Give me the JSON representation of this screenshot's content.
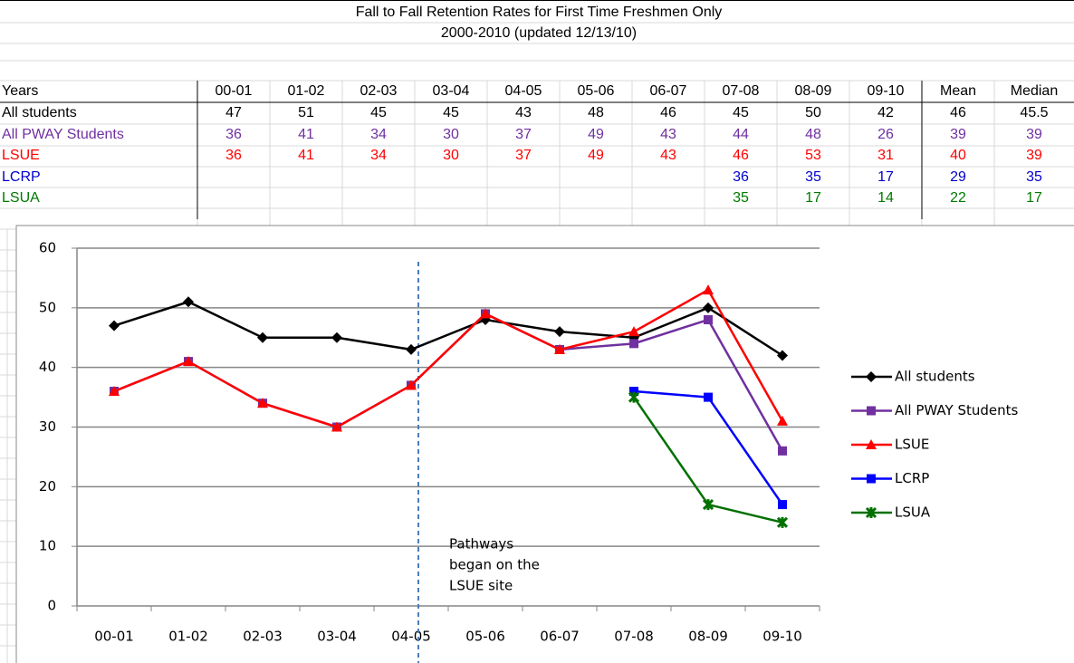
{
  "header": {
    "title": "Fall to Fall Retention Rates for First Time Freshmen Only",
    "subtitle": "2000-2010 (updated 12/13/10)"
  },
  "table": {
    "header": [
      "Years",
      "00-01",
      "01-02",
      "02-03",
      "03-04",
      "04-05",
      "05-06",
      "06-07",
      "07-08",
      "08-09",
      "09-10",
      "Mean",
      "Median"
    ],
    "rows": [
      {
        "label": "All students",
        "color": "#000000",
        "cells": [
          47,
          51,
          45,
          45,
          43,
          48,
          46,
          45,
          50,
          42,
          46,
          45.5
        ]
      },
      {
        "label": "All PWAY Students",
        "color": "#7030a0",
        "cells": [
          36,
          41,
          34,
          30,
          37,
          49,
          43,
          44,
          48,
          26,
          39,
          39
        ]
      },
      {
        "label": "LSUE",
        "color": "#ff0000",
        "cells": [
          36,
          41,
          34,
          30,
          37,
          49,
          43,
          46,
          53,
          31,
          40,
          39
        ]
      },
      {
        "label": "LCRP",
        "color": "#0000cc",
        "cells": [
          null,
          null,
          null,
          null,
          null,
          null,
          null,
          36,
          35,
          17,
          29,
          35
        ]
      },
      {
        "label": "LSUA",
        "color": "#007a00",
        "cells": [
          null,
          null,
          null,
          null,
          null,
          null,
          null,
          35,
          17,
          14,
          22,
          17
        ]
      }
    ]
  },
  "chart_data": {
    "type": "line",
    "categories": [
      "00-01",
      "01-02",
      "02-03",
      "03-04",
      "04-05",
      "05-06",
      "06-07",
      "07-08",
      "08-09",
      "09-10"
    ],
    "series": [
      {
        "name": "All students",
        "color": "#000000",
        "marker": "diamond",
        "values": [
          47,
          51,
          45,
          45,
          43,
          48,
          46,
          45,
          50,
          42
        ]
      },
      {
        "name": "All PWAY Students",
        "color": "#7030a0",
        "marker": "square",
        "values": [
          36,
          41,
          34,
          30,
          37,
          49,
          43,
          44,
          48,
          26
        ]
      },
      {
        "name": "LSUE",
        "color": "#ff0000",
        "marker": "triangle",
        "values": [
          36,
          41,
          34,
          30,
          37,
          49,
          43,
          46,
          53,
          31
        ]
      },
      {
        "name": "LCRP",
        "color": "#0000ff",
        "marker": "square",
        "values": [
          null,
          null,
          null,
          null,
          null,
          null,
          null,
          36,
          35,
          17
        ]
      },
      {
        "name": "LSUA",
        "color": "#007000",
        "marker": "x",
        "values": [
          null,
          null,
          null,
          null,
          null,
          null,
          null,
          35,
          17,
          14
        ]
      }
    ],
    "ylim": [
      0,
      60
    ],
    "yticks": [
      0,
      10,
      20,
      30,
      40,
      50,
      60
    ],
    "grid": true,
    "annotation": [
      "Pathways",
      "began on the",
      "LSUE site"
    ]
  }
}
